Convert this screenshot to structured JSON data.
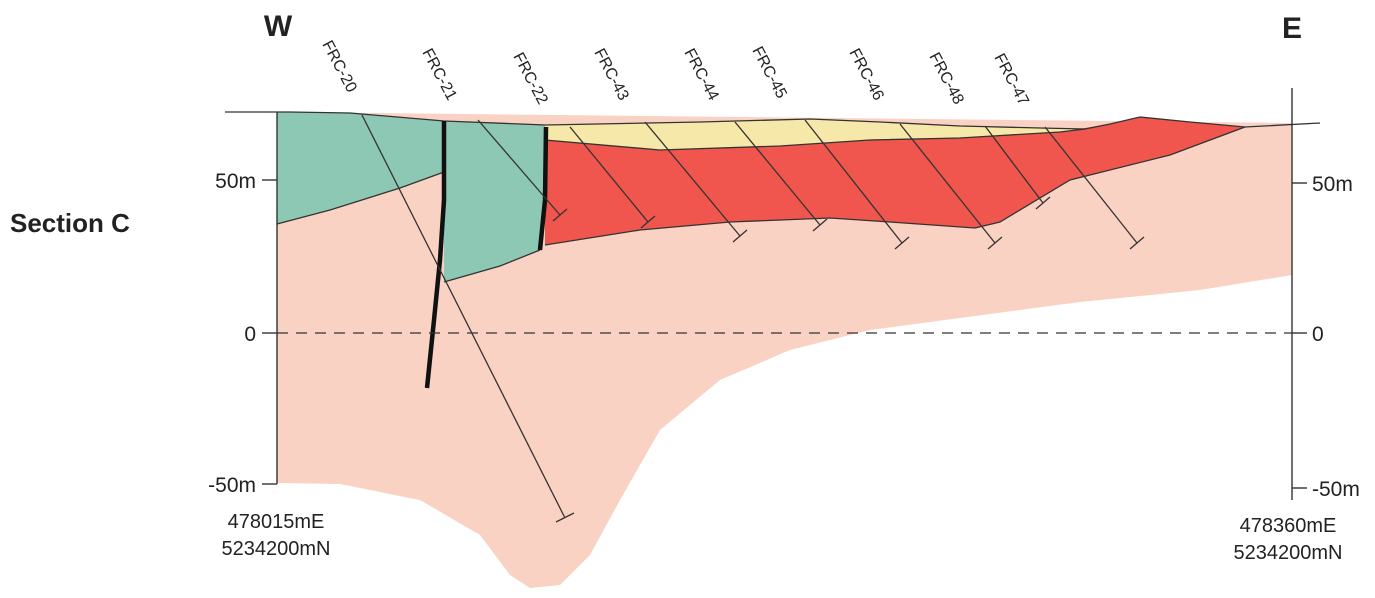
{
  "compass": {
    "west": "W",
    "east": "E"
  },
  "section_title": "Section C",
  "left_axis": {
    "ticks": [
      "50m",
      "0",
      "-50m"
    ]
  },
  "right_axis": {
    "ticks": [
      "50m",
      "0",
      "-50m"
    ]
  },
  "left_coords": {
    "easting": "478015mE",
    "northing": "5234200mN"
  },
  "right_coords": {
    "easting": "478360mE",
    "northing": "5234200mN"
  },
  "drillholes": [
    "FRC-20",
    "FRC-21",
    "FRC-22",
    "FRC-43",
    "FRC-44",
    "FRC-45",
    "FRC-46",
    "FRC-48",
    "FRC-47"
  ],
  "colors": {
    "basement": "#f9d2c4",
    "green_unit": "#8cc8b4",
    "red_unit": "#f0564e",
    "yellow_cover": "#f6e8a8",
    "line": "#222222"
  }
}
